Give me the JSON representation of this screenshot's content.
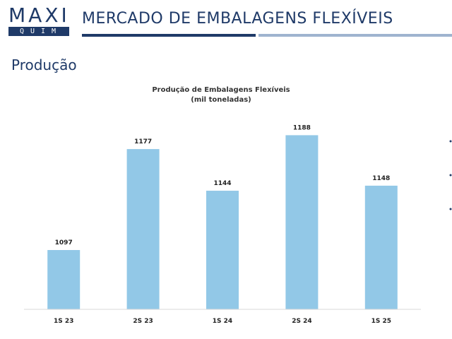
{
  "header": {
    "logo_top": "MAXI",
    "logo_bottom": "QUIM",
    "title": "MERCADO DE EMBALAGENS FLEXÍVEIS"
  },
  "section_title": "Produção",
  "colors": {
    "brand_navy": "#1f3a68",
    "bar": "#92c8e7",
    "rule_light": "#9fb4cf"
  },
  "chart_data": {
    "type": "bar",
    "title": "Produção de Embalagens Flexíveis",
    "subtitle": "(mil toneladas)",
    "categories": [
      "1S 23",
      "2S 23",
      "1S 24",
      "2S 24",
      "1S 25"
    ],
    "values": [
      1097,
      1177,
      1144,
      1188,
      1148
    ],
    "xlabel": "",
    "ylabel": "",
    "ylim": [
      1050,
      1200
    ],
    "grid": false,
    "legend": "none"
  }
}
